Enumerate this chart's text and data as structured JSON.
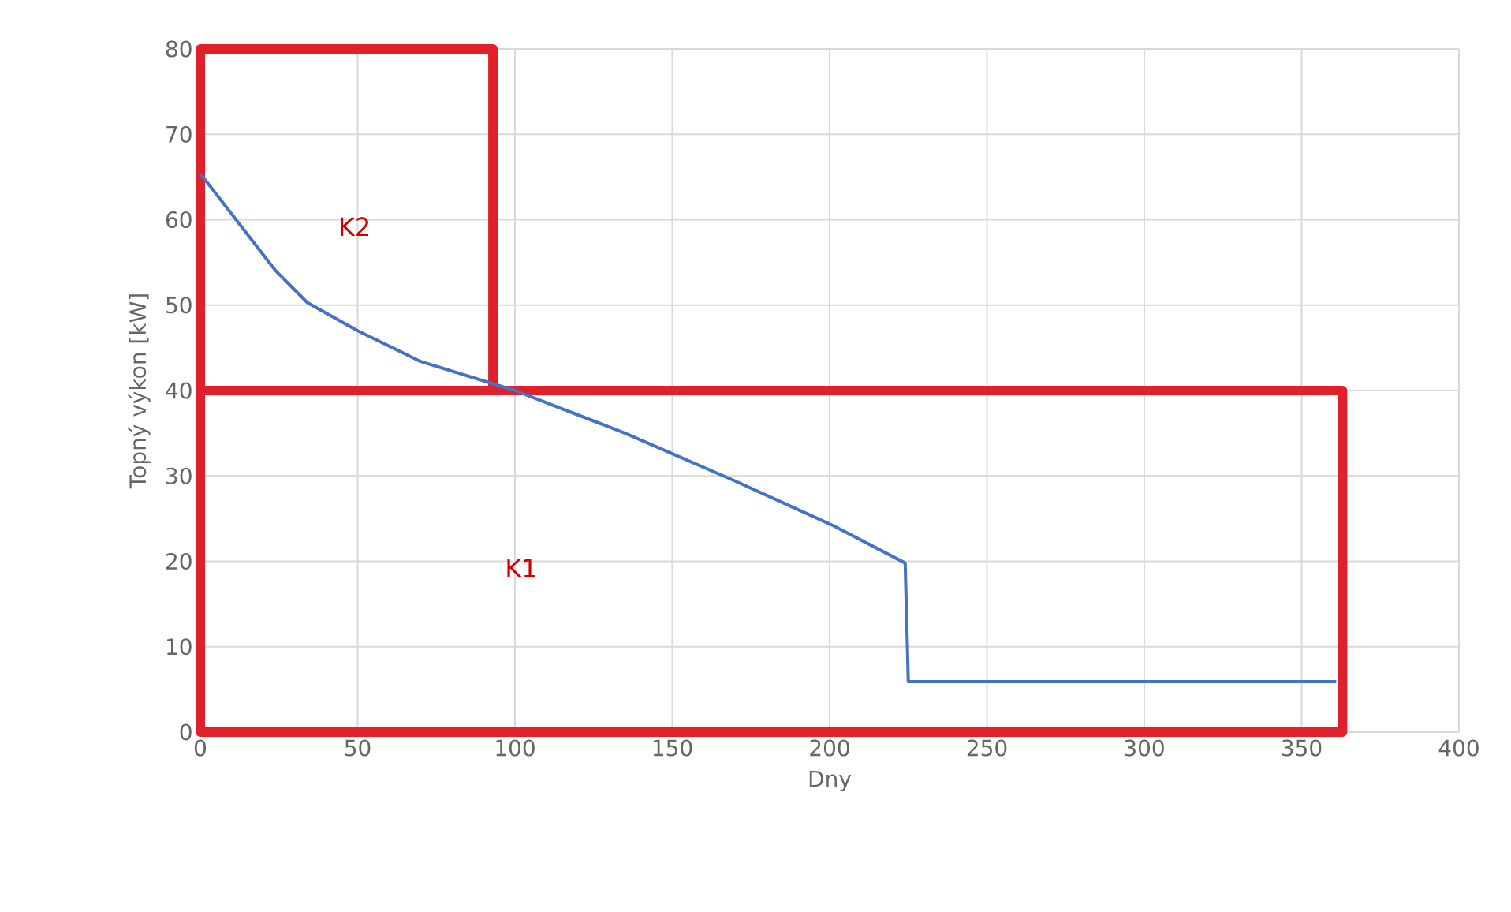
{
  "chart_data": {
    "type": "line",
    "xlabel": "Dny",
    "ylabel": "Topný výkon [kW]",
    "xlim": [
      0,
      400
    ],
    "ylim": [
      0,
      80
    ],
    "xticks": [
      0,
      50,
      100,
      150,
      200,
      250,
      300,
      350,
      400
    ],
    "yticks": [
      0,
      10,
      20,
      30,
      40,
      50,
      60,
      70,
      80
    ],
    "grid": true,
    "series": [
      {
        "color": "#4472c4",
        "x": [
          0,
          24,
          34,
          50,
          70,
          100,
          135,
          170,
          201,
          224,
          225,
          361
        ],
        "values": [
          65.4,
          54,
          50.3,
          47,
          43.4,
          40,
          35,
          29.4,
          24.2,
          19.8,
          5.9,
          5.9
        ]
      },
      {
        "color": "#e0202a",
        "x": [
          93,
          0,
          0,
          93,
          93,
          363,
          363,
          0,
          0
        ],
        "values": [
          40,
          40,
          80,
          80,
          40,
          40,
          0,
          0,
          40
        ]
      }
    ],
    "annotations": [
      "K2",
      "K1"
    ]
  }
}
